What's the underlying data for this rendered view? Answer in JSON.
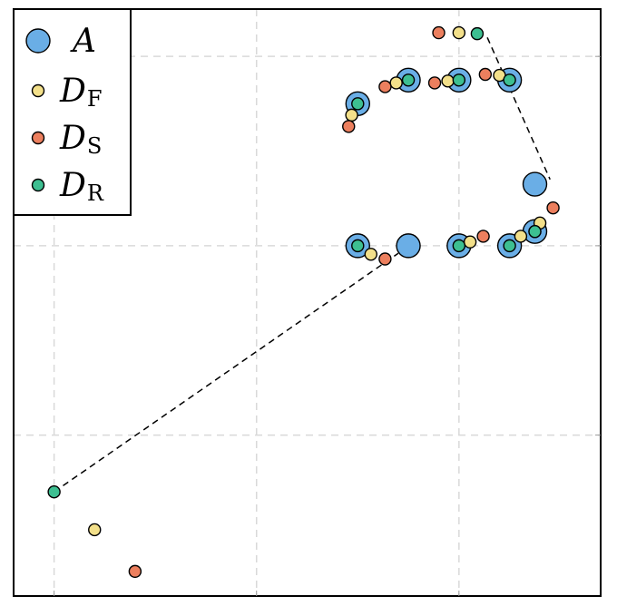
{
  "chart_data": {
    "type": "scatter",
    "grid": true,
    "legend_position": "top-left",
    "xlim": [
      -0.2,
      2.7
    ],
    "ylim": [
      -0.85,
      2.25
    ],
    "series": [
      {
        "name": "A",
        "color": "#6aaee6",
        "size": "large",
        "points": [
          [
            1.5,
            1.0
          ],
          [
            1.75,
            1.0
          ],
          [
            2.0,
            1.0
          ],
          [
            2.25,
            1.0
          ],
          [
            2.375,
            1.075
          ],
          [
            2.375,
            1.325
          ],
          [
            2.25,
            1.875
          ],
          [
            2.0,
            1.875
          ],
          [
            1.75,
            1.875
          ],
          [
            1.5,
            1.75
          ]
        ]
      },
      {
        "name": "D_F",
        "label": "D",
        "subscript": "F",
        "color": "#f3e08a",
        "size": "small",
        "points": [
          [
            0.2,
            -0.5
          ],
          [
            1.565,
            0.955
          ],
          [
            2.055,
            1.02
          ],
          [
            2.305,
            1.05
          ],
          [
            2.4,
            1.12
          ],
          [
            2.2,
            1.9
          ],
          [
            1.945,
            1.87
          ],
          [
            1.69,
            1.86
          ],
          [
            1.47,
            1.69
          ],
          [
            2.0,
            2.125
          ]
        ]
      },
      {
        "name": "D_S",
        "label": "D",
        "subscript": "S",
        "color": "#ec7f5e",
        "size": "small",
        "points": [
          [
            0.4,
            -0.72
          ],
          [
            1.635,
            0.93
          ],
          [
            2.12,
            1.05
          ],
          [
            2.375,
            1.075
          ],
          [
            2.465,
            1.2
          ],
          [
            2.13,
            1.905
          ],
          [
            1.88,
            1.86
          ],
          [
            1.635,
            1.84
          ],
          [
            1.455,
            1.63
          ],
          [
            1.9,
            2.125
          ]
        ]
      },
      {
        "name": "D_R",
        "label": "D",
        "subscript": "R",
        "color": "#3dbf91",
        "size": "small",
        "points": [
          [
            0.0,
            -0.3
          ],
          [
            1.5,
            1.0
          ],
          [
            2.0,
            1.0
          ],
          [
            2.25,
            1.0
          ],
          [
            2.375,
            1.075
          ],
          [
            2.25,
            1.875
          ],
          [
            2.0,
            1.875
          ],
          [
            1.75,
            1.875
          ],
          [
            1.5,
            1.75
          ],
          [
            2.09,
            2.12
          ]
        ]
      }
    ],
    "dashed_lines": [
      [
        [
          0.0,
          -0.3
        ],
        [
          1.7,
          0.96
        ]
      ],
      [
        [
          2.14,
          2.1
        ],
        [
          2.45,
          1.35
        ]
      ]
    ],
    "x_gridlines": [
      0.0,
      1.0,
      2.0
    ],
    "y_gridlines": [
      0.0,
      1.0,
      2.0
    ]
  }
}
